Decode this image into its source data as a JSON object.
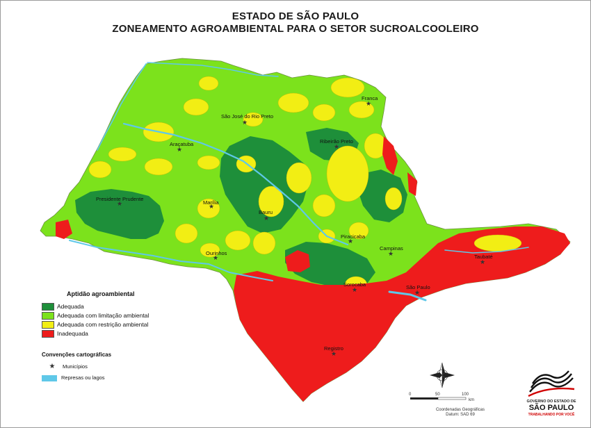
{
  "title": {
    "line1": "ESTADO DE SÃO PAULO",
    "line2": "ZONEAMENTO AGROAMBIENTAL PARA O SETOR SUCROALCOOLEIRO"
  },
  "colors": {
    "adequada": "#1e8f3a",
    "limitacao": "#7ce21c",
    "restricao": "#f2ee14",
    "inadequada": "#ee1c1c",
    "water": "#5fc8e8"
  },
  "legend": {
    "title": "Aptidão agroambiental",
    "items": [
      {
        "label": "Adequada",
        "color": "#1e8f3a"
      },
      {
        "label": "Adequada com limitação ambiental",
        "color": "#7ce21c"
      },
      {
        "label": "Adequada com restrição ambiental",
        "color": "#f2ee14"
      },
      {
        "label": "Inadequada",
        "color": "#ee1c1c"
      }
    ]
  },
  "conventions": {
    "title": "Convenções cartográficas",
    "municipios": "Municípios",
    "represas": "Represas ou lagos"
  },
  "cities": [
    {
      "name": "São José do Rio Preto"
    },
    {
      "name": "Franca"
    },
    {
      "name": "Araçatuba"
    },
    {
      "name": "Ribeirão Preto"
    },
    {
      "name": "Presidente Prudente"
    },
    {
      "name": "Marília"
    },
    {
      "name": "Bauru"
    },
    {
      "name": "Piracicaba"
    },
    {
      "name": "Campinas"
    },
    {
      "name": "Ourinhos"
    },
    {
      "name": "Taubaté"
    },
    {
      "name": "Sorocaba"
    },
    {
      "name": "São Paulo"
    },
    {
      "name": "Registro"
    }
  ],
  "coords_note": {
    "line1": "Coordenadas Geográficas",
    "line2": "Datum: SAD 69"
  },
  "scale": {
    "ticks": [
      "0",
      "50",
      "100"
    ],
    "unit": "km"
  },
  "logo": {
    "line1": "GOVERNO DO ESTADO DE",
    "line2": "SÃO PAULO",
    "line3": "TRABALHANDO POR VOCÊ"
  }
}
